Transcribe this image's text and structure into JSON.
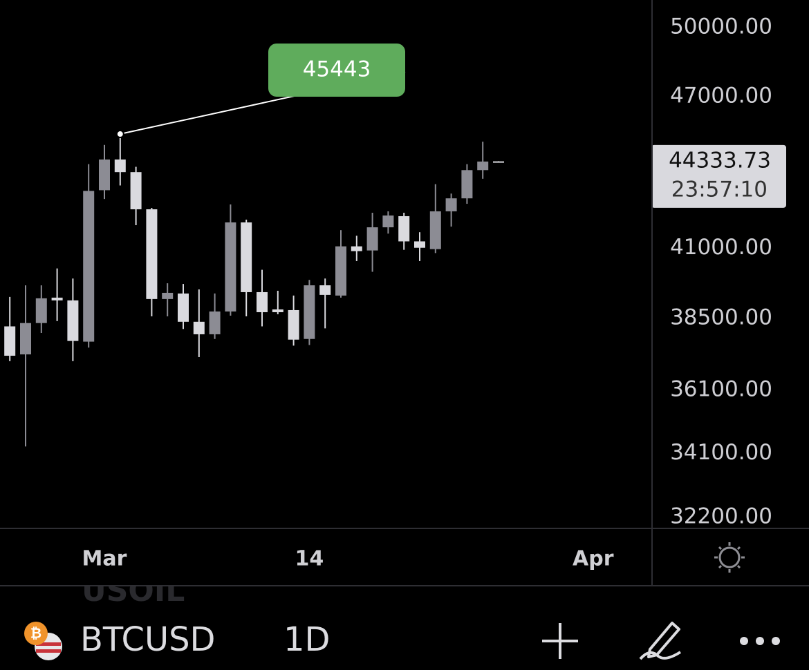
{
  "chart_data": {
    "type": "candlestick",
    "x": [
      "02-23",
      "02-24",
      "02-25",
      "02-26",
      "02-27",
      "02-28",
      "03-01",
      "03-02",
      "03-03",
      "03-04",
      "03-05",
      "03-06",
      "03-07",
      "03-08",
      "03-09",
      "03-10",
      "03-11",
      "03-12",
      "03-13",
      "03-14",
      "03-15",
      "03-16",
      "03-17",
      "03-18",
      "03-19",
      "03-20",
      "03-21",
      "03-22",
      "03-23",
      "03-24",
      "03-25",
      "03-26"
    ],
    "open": [
      38228,
      37277,
      38342,
      39228,
      39131,
      37707,
      43205,
      44415,
      43913,
      42470,
      39180,
      39374,
      38387,
      37957,
      38743,
      41972,
      39422,
      38815,
      38791,
      37798,
      39665,
      39301,
      41079,
      40927,
      41788,
      42208,
      41263,
      40976,
      42392,
      42890,
      43992,
      44340
    ],
    "high": [
      39253,
      39665,
      39665,
      40272,
      39908,
      44228,
      45000,
      45443,
      44123,
      42522,
      39738,
      39714,
      39520,
      39374,
      42654,
      42077,
      40223,
      39471,
      39301,
      39859,
      39908,
      41682,
      41472,
      42339,
      42392,
      42339,
      41604,
      43441,
      43074,
      44228,
      45130.91,
      44345
    ],
    "low": [
      37051,
      34316,
      38002,
      38409,
      37051,
      37504,
      42864,
      43388,
      41867,
      38573,
      38573,
      38138,
      37187,
      37798,
      38597,
      38573,
      38228,
      38646,
      37572,
      37594,
      38160,
      39228,
      40539,
      40151,
      41552,
      40951,
      40539,
      40830,
      41814,
      42680,
      43651,
      44330
    ],
    "close": [
      37232,
      38342,
      39204,
      39131,
      37730,
      43178,
      44415,
      43913,
      42470,
      39180,
      39398,
      38387,
      37957,
      38743,
      41972,
      39422,
      38718,
      38718,
      37775,
      39665,
      39326,
      41079,
      40903,
      41788,
      42234,
      41263,
      41026,
      42392,
      42890,
      43992,
      44333,
      44333.73
    ],
    "up_color": "#8c8c94",
    "down_color": "#dadadf",
    "annotation_color": "#5fac5c",
    "xlim": [
      "02-22",
      "04-04"
    ],
    "xticks": [
      {
        "value": "03-01",
        "label": "Mar"
      },
      {
        "value": "03-14",
        "label": "14"
      },
      {
        "value": "04-01",
        "label": "Apr"
      }
    ],
    "ylim": [
      31880,
      51260
    ],
    "log_scale": true,
    "yticks": [
      {
        "value": 50000,
        "label": "50000.00"
      },
      {
        "value": 47000,
        "label": "47000.00"
      },
      {
        "value": 41000,
        "label": "41000.00"
      },
      {
        "value": 38500,
        "label": "38500.00"
      },
      {
        "value": 36100,
        "label": "36100.00"
      },
      {
        "value": 34100,
        "label": "34100.00"
      },
      {
        "value": 32200,
        "label": "32200.00"
      }
    ],
    "countdown": "23:57:10"
  },
  "toolbar": {
    "faded_symbol": "USOIL",
    "symbol": "BTCUSD",
    "interval": "1D"
  }
}
